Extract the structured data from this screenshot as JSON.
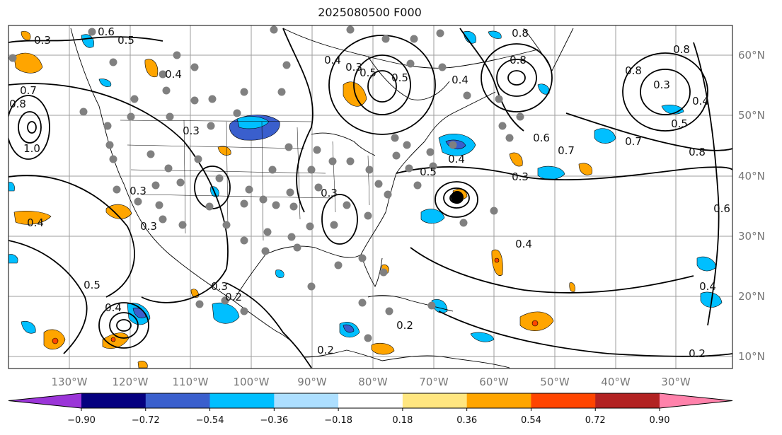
{
  "title": "2025080500 F000",
  "map": {
    "lat_labels": [
      "60°N",
      "50°N",
      "40°N",
      "30°N",
      "20°N",
      "10°N"
    ],
    "lon_labels": [
      "130°W",
      "120°W",
      "110°W",
      "100°W",
      "90°W",
      "80°W",
      "70°W",
      "60°W",
      "50°W",
      "40°W",
      "30°W"
    ],
    "contour_labels": [
      "0.2",
      "0.3",
      "0.4",
      "0.5",
      "0.6",
      "0.7",
      "0.8",
      "1.0"
    ]
  },
  "colorbar": {
    "ticks": [
      "−0.90",
      "−0.72",
      "−0.54",
      "−0.36",
      "−0.18",
      "0.18",
      "0.36",
      "0.54",
      "0.72",
      "0.90"
    ],
    "colors": [
      "#9b35d8",
      "#05007f",
      "#3a5fcd",
      "#00bfff",
      "#addfff",
      "#ffffff",
      "#ffe680",
      "#ffa500",
      "#ff4500",
      "#b22222",
      "#ff82ab"
    ]
  },
  "colors": {
    "station_dot": "#808080",
    "contour": "#000000",
    "grid": "#9e9e9e"
  }
}
